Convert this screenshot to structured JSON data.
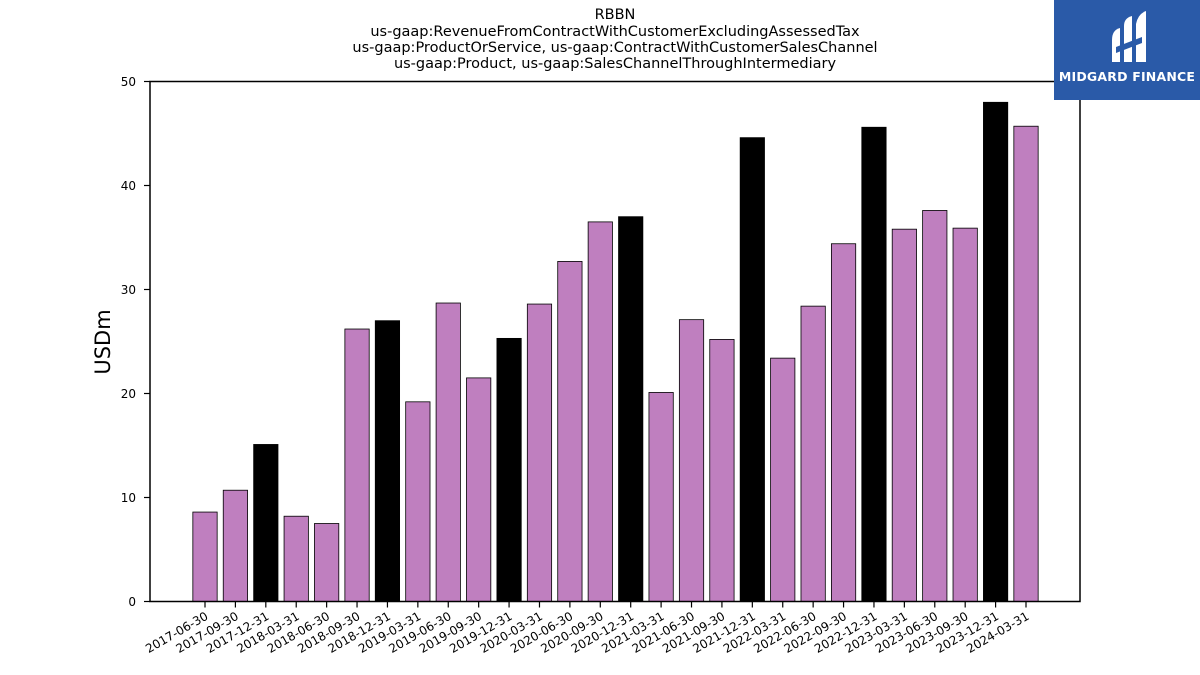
{
  "chart_data": {
    "type": "bar",
    "title_lines": [
      "RBBN",
      "us-gaap:RevenueFromContractWithCustomerExcludingAssessedTax",
      "us-gaap:ProductOrService, us-gaap:ContractWithCustomerSalesChannel",
      "us-gaap:Product, us-gaap:SalesChannelThroughIntermediary"
    ],
    "ylabel": "USDm",
    "ylim": [
      0,
      50
    ],
    "yticks": [
      0,
      10,
      20,
      30,
      40,
      50
    ],
    "grid": false,
    "categories": [
      "2017-06-30",
      "2017-09-30",
      "2017-12-31",
      "2018-03-31",
      "2018-06-30",
      "2018-09-30",
      "2018-12-31",
      "2019-03-31",
      "2019-06-30",
      "2019-09-30",
      "2019-12-31",
      "2020-03-31",
      "2020-06-30",
      "2020-09-30",
      "2020-12-31",
      "2021-03-31",
      "2021-06-30",
      "2021-09-30",
      "2021-12-31",
      "2022-03-31",
      "2022-06-30",
      "2022-09-30",
      "2022-12-31",
      "2023-03-31",
      "2023-06-30",
      "2023-09-30",
      "2023-12-31",
      "2024-03-31"
    ],
    "values": [
      8.6,
      10.7,
      15.1,
      8.2,
      7.5,
      26.2,
      27.0,
      19.2,
      28.7,
      21.5,
      25.3,
      28.6,
      32.7,
      36.5,
      37.0,
      20.1,
      27.1,
      25.2,
      44.6,
      23.4,
      28.4,
      34.4,
      45.6,
      35.8,
      37.6,
      35.9,
      48.0,
      45.7
    ],
    "bar_colors": [
      "#bf7fbf",
      "#bf7fbf",
      "#000000",
      "#bf7fbf",
      "#bf7fbf",
      "#bf7fbf",
      "#000000",
      "#bf7fbf",
      "#bf7fbf",
      "#bf7fbf",
      "#000000",
      "#bf7fbf",
      "#bf7fbf",
      "#bf7fbf",
      "#000000",
      "#bf7fbf",
      "#bf7fbf",
      "#bf7fbf",
      "#000000",
      "#bf7fbf",
      "#bf7fbf",
      "#bf7fbf",
      "#000000",
      "#bf7fbf",
      "#bf7fbf",
      "#bf7fbf",
      "#000000",
      "#bf7fbf"
    ]
  },
  "logo": {
    "text": "MIDGARD FINANCE",
    "background": "#2a5aa8",
    "icon": "midgard-logo-icon"
  }
}
